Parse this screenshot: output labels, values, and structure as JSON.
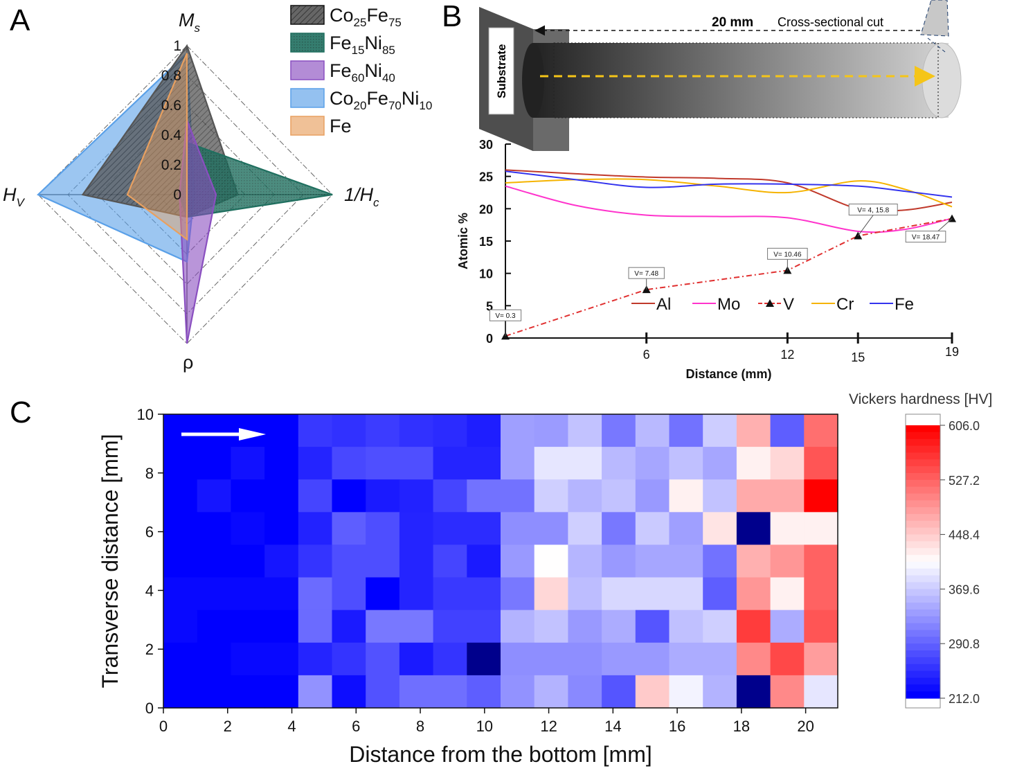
{
  "panel_labels": [
    "A",
    "B",
    "C"
  ],
  "colors": {
    "Co25Fe75": "#555555",
    "Fe15Ni85": "#1f6f5f",
    "Fe60Ni40": "#8a4fc0",
    "Co20Fe70Ni10": "#5aa0e8",
    "Fe": "#e8a060",
    "Al": "#c0392b",
    "Mo": "#ff33cc",
    "V": "#e03030",
    "Cr": "#f5b300",
    "FeLine": "#3333ee"
  },
  "chart_data": [
    {
      "type": "radar",
      "axes": [
        {
          "key": "Ms",
          "label": "M",
          "sub": "s"
        },
        {
          "key": "Hc_inv",
          "label": "1/H",
          "sub": "c"
        },
        {
          "key": "rho",
          "label": "ρ",
          "sub": ""
        },
        {
          "key": "Hv",
          "label": "H",
          "sub": "V"
        }
      ],
      "ticks": [
        "0",
        "0.2",
        "0.4",
        "0.6",
        "0.8",
        "1"
      ],
      "range": [
        0,
        1
      ],
      "series": [
        {
          "name": "Co",
          "sub1": "25",
          "name2": "Fe",
          "sub2": "75",
          "key": "Co25Fe75",
          "values": [
            1.0,
            0.35,
            0.15,
            0.7
          ],
          "pattern": true
        },
        {
          "name": "Fe",
          "sub1": "15",
          "name2": "Ni",
          "sub2": "85",
          "key": "Fe15Ni85",
          "values": [
            0.35,
            1.0,
            0.15,
            0.05
          ],
          "pattern": true
        },
        {
          "name": "Fe",
          "sub1": "60",
          "name2": "Ni",
          "sub2": "40",
          "key": "Fe60Ni40",
          "values": [
            0.5,
            0.2,
            1.0,
            0.05
          ],
          "pattern": false
        },
        {
          "name": "Co",
          "sub1": "20",
          "name2": "Fe",
          "sub2": "70",
          "name3": "Ni",
          "sub3": "10",
          "key": "Co20Fe70Ni10",
          "values": [
            0.95,
            0.05,
            0.45,
            1.0
          ],
          "pattern": false
        },
        {
          "name": "Fe",
          "sub1": "",
          "name2": "",
          "sub2": "",
          "key": "Fe",
          "values": [
            0.95,
            0.0,
            0.3,
            0.4
          ],
          "pattern": false
        }
      ]
    },
    {
      "type": "line",
      "ylabel": "Atomic %",
      "xlabel": "Distance (mm)",
      "ylim": [
        0,
        30
      ],
      "xlim": [
        0,
        19
      ],
      "yticks": [
        0,
        5,
        10,
        15,
        20,
        25,
        30
      ],
      "xticks": [
        6,
        12,
        15,
        19
      ],
      "series": [
        {
          "name": "Al",
          "key": "Al",
          "dashed": false,
          "x": [
            0,
            3,
            6,
            9,
            12,
            15,
            17,
            19
          ],
          "y": [
            26,
            25.4,
            24.9,
            24.7,
            24,
            20,
            19.8,
            21
          ]
        },
        {
          "name": "Mo",
          "key": "Mo",
          "dashed": false,
          "x": [
            0,
            3,
            6,
            9,
            12,
            15,
            17,
            19
          ],
          "y": [
            23.5,
            20.5,
            19,
            18.8,
            18.6,
            16.5,
            16.8,
            18.5
          ]
        },
        {
          "name": "V",
          "key": "V",
          "dashed": true,
          "x": [
            0,
            6,
            12,
            15,
            19
          ],
          "y": [
            0.3,
            7.48,
            10.46,
            15.8,
            18.47
          ]
        },
        {
          "name": "Cr",
          "key": "Cr",
          "dashed": false,
          "x": [
            0,
            3,
            6,
            9,
            12,
            15,
            17,
            19
          ],
          "y": [
            24,
            24.5,
            24.5,
            23.5,
            22.5,
            24.3,
            23,
            20.3
          ]
        },
        {
          "name": "Fe",
          "key": "FeLine",
          "dashed": false,
          "x": [
            0,
            3,
            6,
            9,
            12,
            15,
            17,
            19
          ],
          "y": [
            25.8,
            24.5,
            23.3,
            23.8,
            23.8,
            23.5,
            22.7,
            21.8
          ]
        }
      ],
      "annotations": [
        "V= 0.3",
        "V= 7.48",
        "V= 10.46",
        "V= 4, 15.8",
        "V= 18.47"
      ],
      "schematic": {
        "substrate_label": "Substrate",
        "length_label": "20 mm",
        "cut_label": "Cross-sectional cut"
      }
    },
    {
      "type": "heatmap",
      "title": "Vickers hardness [HV]",
      "xlabel": "Distance from the bottom [mm]",
      "ylabel": "Transverse distance [mm]",
      "xlim": [
        0,
        21
      ],
      "ylim": [
        0,
        10
      ],
      "xticks": [
        0,
        2,
        4,
        6,
        8,
        10,
        12,
        14,
        16,
        18,
        20
      ],
      "yticks": [
        0,
        2,
        4,
        6,
        8,
        10
      ],
      "colorbar_ticks": [
        "606.0",
        "527.2",
        "448.4",
        "369.6",
        "290.8",
        "212.0"
      ],
      "vmin": 212.0,
      "vmax": 606.0,
      "columns": 20,
      "rows_top_to_bottom": [
        [
          212,
          212,
          212,
          212,
          255,
          250,
          258,
          250,
          245,
          235,
          335,
          332,
          362,
          305,
          355,
          300,
          370,
          470,
          285,
          520
        ],
        [
          212,
          212,
          225,
          212,
          240,
          268,
          273,
          273,
          240,
          240,
          335,
          390,
          390,
          355,
          340,
          360,
          340,
          420,
          440,
          540
        ],
        [
          212,
          228,
          212,
          212,
          265,
          212,
          232,
          238,
          265,
          300,
          300,
          372,
          352,
          362,
          330,
          420,
          362,
          475,
          475,
          606
        ],
        [
          212,
          212,
          218,
          212,
          238,
          285,
          272,
          240,
          246,
          246,
          322,
          322,
          372,
          305,
          368,
          335,
          430,
          200,
          420,
          420
        ],
        [
          212,
          212,
          212,
          228,
          252,
          272,
          272,
          240,
          265,
          232,
          330,
          410,
          352,
          330,
          340,
          340,
          300,
          470,
          490,
          530
        ],
        [
          218,
          218,
          218,
          218,
          295,
          272,
          212,
          240,
          256,
          256,
          305,
          440,
          358,
          378,
          378,
          378,
          285,
          490,
          420,
          530
        ],
        [
          218,
          212,
          212,
          212,
          295,
          232,
          305,
          305,
          262,
          262,
          350,
          362,
          330,
          345,
          278,
          360,
          372,
          560,
          345,
          540
        ],
        [
          212,
          212,
          218,
          218,
          240,
          252,
          275,
          232,
          252,
          200,
          322,
          322,
          322,
          330,
          330,
          345,
          345,
          500,
          550,
          485
        ],
        [
          212,
          212,
          212,
          212,
          325,
          222,
          275,
          298,
          298,
          285,
          325,
          350,
          318,
          278,
          450,
          400,
          350,
          200,
          500,
          390
        ]
      ],
      "arrow": "right"
    }
  ]
}
